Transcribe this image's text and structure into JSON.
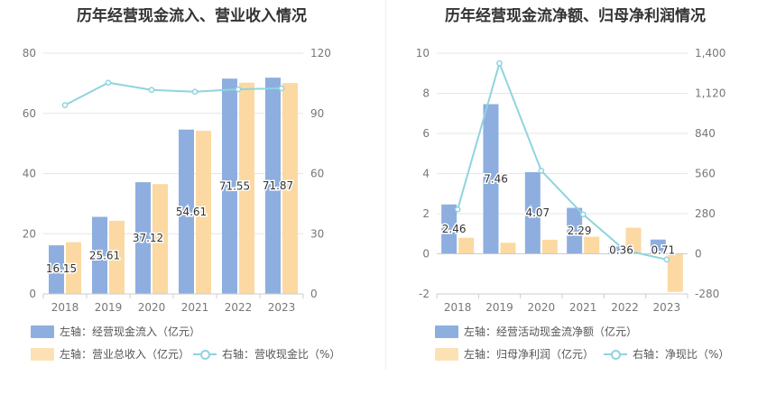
{
  "colors": {
    "bar1": "#8eaedf",
    "bar2": "#fcd9a2",
    "line": "#8fd4de"
  },
  "chart_data": [
    {
      "type": "bar",
      "title": "历年经营现金流入、营业收入情况",
      "categories": [
        "2018",
        "2019",
        "2020",
        "2021",
        "2022",
        "2023"
      ],
      "left_axis": {
        "min": 0,
        "max": 80,
        "ticks": [
          "0",
          "20",
          "40",
          "60",
          "80"
        ]
      },
      "right_axis": {
        "min": 0,
        "max": 120,
        "ticks": [
          "0",
          "30",
          "60",
          "90",
          "120"
        ]
      },
      "series": [
        {
          "name": "左轴：经营现金流入（亿元）",
          "type": "bar",
          "axis": "left",
          "values": [
            16.15,
            25.61,
            37.12,
            54.61,
            71.55,
            71.87
          ],
          "labels": [
            "16.15",
            "25.61",
            "37.12",
            "54.61",
            "71.55",
            "71.87"
          ]
        },
        {
          "name": "左轴：营业总收入（亿元）",
          "type": "bar",
          "axis": "left",
          "values": [
            17.2,
            24.3,
            36.5,
            54.2,
            70.2,
            70.1
          ]
        },
        {
          "name": "右轴：营收现金比（%）",
          "type": "line",
          "axis": "right",
          "values": [
            94.1,
            105.3,
            101.7,
            100.8,
            102.0,
            102.5
          ]
        }
      ],
      "legend": "bottom"
    },
    {
      "type": "bar",
      "title": "历年经营现金流净额、归母净利润情况",
      "categories": [
        "2018",
        "2019",
        "2020",
        "2021",
        "2022",
        "2023"
      ],
      "left_axis": {
        "min": -2,
        "max": 10,
        "ticks": [
          "-2",
          "0",
          "2",
          "4",
          "6",
          "8",
          "10"
        ]
      },
      "right_axis": {
        "min": -280,
        "max": 1400,
        "ticks": [
          "-280",
          "0",
          "280",
          "560",
          "840",
          "1,120",
          "1,400"
        ]
      },
      "series": [
        {
          "name": "左轴：经营活动现金流净额（亿元）",
          "type": "bar",
          "axis": "left",
          "values": [
            2.46,
            7.46,
            4.07,
            2.29,
            0.36,
            0.71
          ],
          "labels": [
            "2.46",
            "7.46",
            "4.07",
            "2.29",
            "0.36",
            "0.71"
          ]
        },
        {
          "name": "左轴：归母净利润（亿元）",
          "type": "bar",
          "axis": "left",
          "values": [
            0.8,
            0.55,
            0.7,
            0.85,
            1.3,
            -1.9
          ]
        },
        {
          "name": "右轴：净现比（%）",
          "type": "line",
          "axis": "right",
          "values": [
            310,
            1330,
            580,
            275,
            25,
            -40
          ]
        }
      ],
      "legend": "bottom"
    }
  ]
}
